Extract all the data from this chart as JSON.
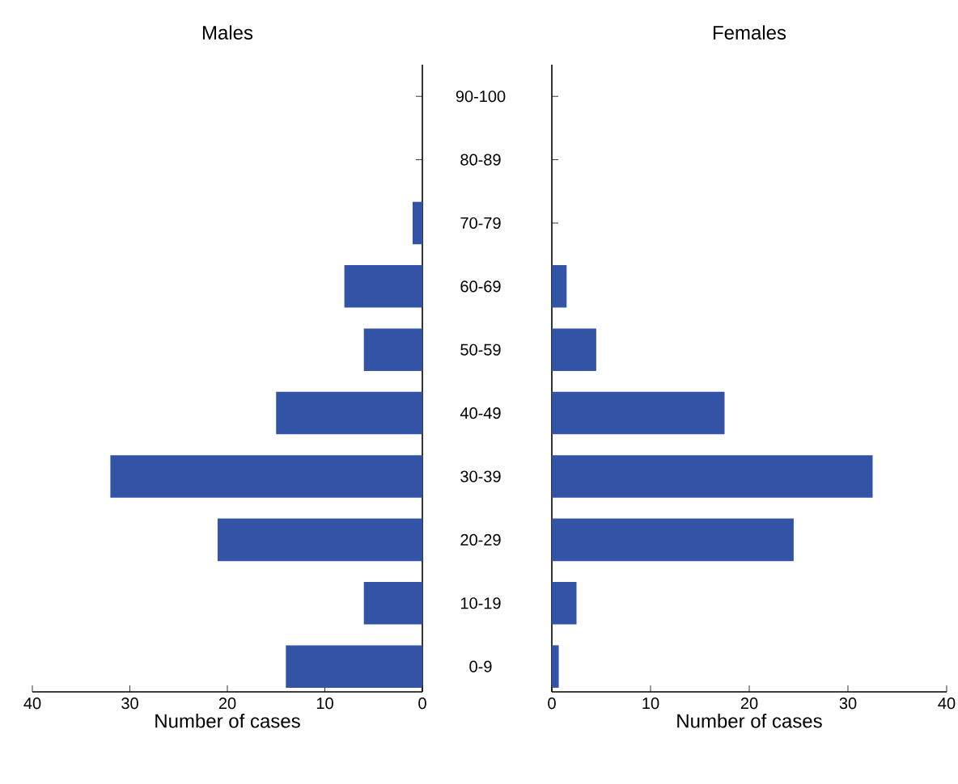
{
  "chart_data": [
    {
      "type": "bar",
      "orientation": "horizontal",
      "title": "Males",
      "xlabel": "Number of cases",
      "categories": [
        "90-100",
        "80-89",
        "70-79",
        "60-69",
        "50-59",
        "40-49",
        "30-39",
        "20-29",
        "10-19",
        "0-9"
      ],
      "values": [
        0,
        0,
        1,
        8,
        6,
        15,
        32,
        21,
        6,
        14
      ],
      "color": "#3353a6",
      "xlim": [
        40,
        0
      ],
      "xticks": [
        40,
        30,
        20,
        10,
        0
      ]
    },
    {
      "type": "bar",
      "orientation": "horizontal",
      "title": "Females",
      "xlabel": "Number of cases",
      "values": [
        0,
        0,
        0,
        1.5,
        4.5,
        17.5,
        32.5,
        24.5,
        2.5,
        0.7
      ],
      "color": "#3353a6",
      "xlim": [
        0,
        40
      ],
      "xticks": [
        0,
        10,
        20,
        30,
        40
      ],
      "tick_labels": "x"
    }
  ]
}
